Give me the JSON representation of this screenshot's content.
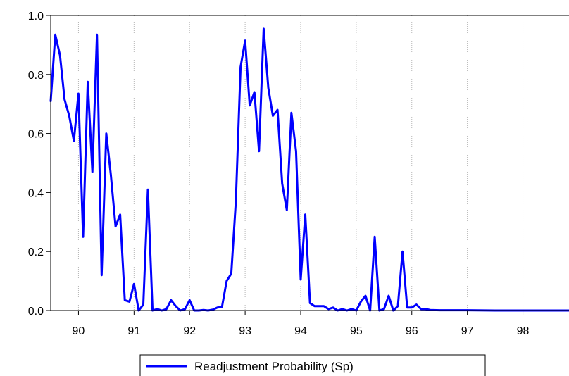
{
  "chart_data": {
    "type": "line",
    "title": "",
    "xlabel": "",
    "ylabel": "",
    "xlim": [
      89.5,
      98.83
    ],
    "ylim": [
      0.0,
      1.0
    ],
    "x_ticks": [
      90,
      91,
      92,
      93,
      94,
      95,
      96,
      97,
      98
    ],
    "x_tick_labels": [
      "90",
      "91",
      "92",
      "93",
      "94",
      "95",
      "96",
      "97",
      "98"
    ],
    "y_ticks": [
      0.0,
      0.2,
      0.4,
      0.6,
      0.8,
      1.0
    ],
    "y_tick_labels": [
      "0.0",
      "0.2",
      "0.4",
      "0.6",
      "0.8",
      "1.0"
    ],
    "grid": "vertical dotted at x ticks",
    "legend_position": "bottom-center",
    "series": [
      {
        "name": "Readjustment Probability (Sp)",
        "color": "#0000ff",
        "x": [
          89.5,
          89.583,
          89.667,
          89.75,
          89.833,
          89.917,
          90.0,
          90.083,
          90.167,
          90.25,
          90.333,
          90.417,
          90.5,
          90.583,
          90.667,
          90.75,
          90.833,
          90.917,
          91.0,
          91.083,
          91.167,
          91.25,
          91.333,
          91.417,
          91.5,
          91.583,
          91.667,
          91.75,
          91.833,
          91.917,
          92.0,
          92.083,
          92.167,
          92.25,
          92.333,
          92.417,
          92.5,
          92.583,
          92.667,
          92.75,
          92.833,
          92.917,
          93.0,
          93.083,
          93.167,
          93.25,
          93.333,
          93.417,
          93.5,
          93.583,
          93.667,
          93.75,
          93.833,
          93.917,
          94.0,
          94.083,
          94.167,
          94.25,
          94.333,
          94.417,
          94.5,
          94.583,
          94.667,
          94.75,
          94.833,
          94.917,
          95.0,
          95.083,
          95.167,
          95.25,
          95.333,
          95.417,
          95.5,
          95.583,
          95.667,
          95.75,
          95.833,
          95.917,
          96.0,
          96.083,
          96.167,
          96.25,
          96.333,
          96.5,
          96.75,
          97.0,
          97.5,
          98.0,
          98.5,
          98.83
        ],
        "values": [
          0.71,
          0.935,
          0.865,
          0.715,
          0.66,
          0.575,
          0.735,
          0.25,
          0.775,
          0.47,
          0.935,
          0.12,
          0.6,
          0.46,
          0.285,
          0.325,
          0.035,
          0.03,
          0.09,
          0.0,
          0.02,
          0.41,
          0.0,
          0.005,
          0.0,
          0.005,
          0.035,
          0.015,
          0.0,
          0.005,
          0.035,
          0.0,
          0.0,
          0.002,
          0.0,
          0.003,
          0.01,
          0.012,
          0.1,
          0.125,
          0.37,
          0.825,
          0.915,
          0.695,
          0.74,
          0.54,
          0.955,
          0.755,
          0.66,
          0.68,
          0.43,
          0.34,
          0.67,
          0.54,
          0.105,
          0.325,
          0.025,
          0.015,
          0.015,
          0.015,
          0.005,
          0.01,
          0.0,
          0.005,
          0.0,
          0.005,
          0.0,
          0.03,
          0.05,
          0.0,
          0.25,
          0.0,
          0.005,
          0.05,
          0.0,
          0.015,
          0.2,
          0.01,
          0.01,
          0.02,
          0.005,
          0.005,
          0.002,
          0.001,
          0.001,
          0.001,
          0.0,
          0.0,
          0.0,
          0.0
        ]
      }
    ]
  }
}
